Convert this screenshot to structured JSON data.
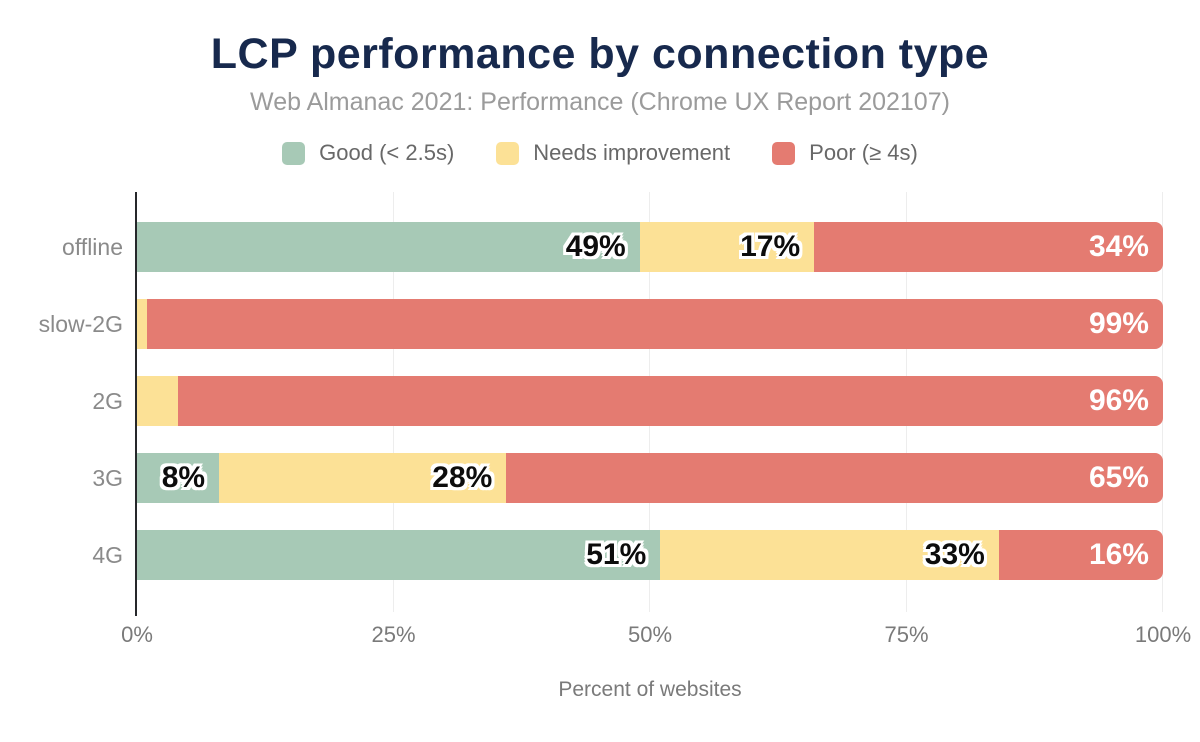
{
  "header": {
    "title": "LCP performance by connection type",
    "subtitle": "Web Almanac 2021: Performance (Chrome UX Report 202107)"
  },
  "colors": {
    "good": "#a7c9b6",
    "needs_improvement": "#fce196",
    "poor": "#e47b71",
    "title_text": "#17294d",
    "subtitle_text": "#9b9b9b",
    "axis_text": "#7a7a7a",
    "gridline": "#ededed",
    "axis_line": "#26282b"
  },
  "legend": {
    "items": [
      {
        "label": "Good (< 2.5s)",
        "color_key": "good"
      },
      {
        "label": "Needs improvement",
        "color_key": "needs_improvement"
      },
      {
        "label": "Poor (≥ 4s)",
        "color_key": "poor"
      }
    ]
  },
  "chart_data": {
    "type": "bar",
    "orientation": "horizontal",
    "stacked": true,
    "title": "LCP performance by connection type",
    "subtitle": "Web Almanac 2021: Performance (Chrome UX Report 202107)",
    "categories": [
      "offline",
      "slow-2G",
      "2G",
      "3G",
      "4G"
    ],
    "series": [
      {
        "name": "Good (< 2.5s)",
        "color_key": "good",
        "values": [
          49,
          0,
          0,
          8,
          51
        ]
      },
      {
        "name": "Needs improvement",
        "color_key": "needs_improvement",
        "values": [
          17,
          1,
          4,
          28,
          33
        ]
      },
      {
        "name": "Poor (≥ 4s)",
        "color_key": "poor",
        "values": [
          34,
          99,
          96,
          65,
          16
        ]
      }
    ],
    "value_suffix": "%",
    "xlabel": "Percent of websites",
    "x_ticks": [
      0,
      25,
      50,
      75,
      100
    ],
    "x_tick_suffix": "%",
    "xlim": [
      0,
      100
    ],
    "grid": "vertical",
    "legend_position": "top"
  }
}
